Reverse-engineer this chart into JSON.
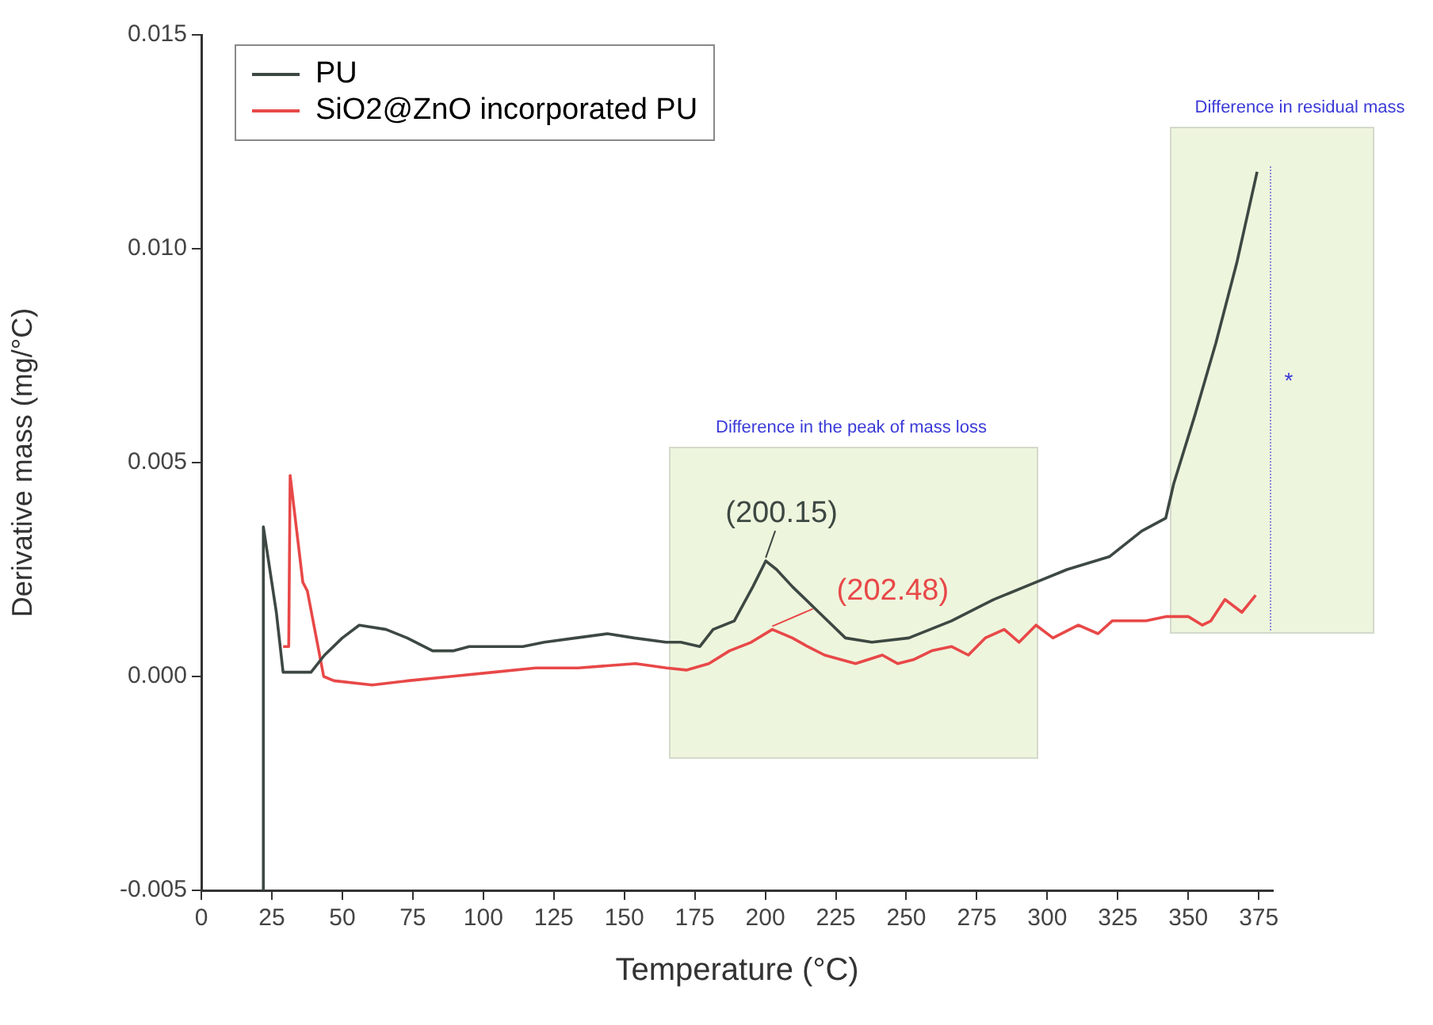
{
  "chart_data": {
    "type": "line",
    "xlabel": "Temperature (°C)",
    "ylabel": "Derivative mass (mg/°C)",
    "xlim": [
      0,
      380
    ],
    "xticks": [
      0,
      25,
      50,
      75,
      100,
      125,
      150,
      175,
      200,
      225,
      250,
      275,
      300,
      325,
      350,
      375
    ],
    "ylim": [
      -0.005,
      0.015
    ],
    "yticks": [
      {
        "value": -0.005,
        "label": "-0.005"
      },
      {
        "value": 0,
        "label": "0.000"
      },
      {
        "value": 0.005,
        "label": "0.005"
      },
      {
        "value": 0.01,
        "label": "0.010"
      },
      {
        "value": 0.015,
        "label": "0.015"
      }
    ],
    "grid": false,
    "legend": "top left",
    "marker": "none",
    "line_style": "solid",
    "series": [
      {
        "name": "PU",
        "color": "#3d4843",
        "x": [
          22,
          22,
          26.6,
          29,
          34,
          38.9,
          43.7,
          50,
          56,
          65.5,
          73,
          82,
          89.5,
          95,
          106,
          114,
          121.6,
          132.8,
          144,
          153.5,
          164.8,
          170,
          176.8,
          181.5,
          189,
          195.6,
          200.15,
          204,
          209.6,
          219,
          228.4,
          237.8,
          250.9,
          266,
          281,
          295.9,
          307,
          322,
          333.5,
          342,
          344.8,
          352.3,
          359.8,
          367.3,
          374.4
        ],
        "values": [
          -0.005,
          0.0035,
          0.0015,
          0.0001,
          0.0001,
          0.0001,
          0.0005,
          0.0009,
          0.0012,
          0.0011,
          0.0009,
          0.0006,
          0.0006,
          0.0007,
          0.0007,
          0.0007,
          0.0008,
          0.0009,
          0.001,
          0.0009,
          0.0008,
          0.0008,
          0.0007,
          0.0011,
          0.0013,
          0.0021,
          0.0027,
          0.0025,
          0.0021,
          0.0015,
          0.0009,
          0.0008,
          0.0009,
          0.0013,
          0.0018,
          0.0022,
          0.0025,
          0.0028,
          0.0034,
          0.0037,
          0.0045,
          0.0061,
          0.0078,
          0.0097,
          0.0118
        ]
      },
      {
        "name": "SiO2@ZnO incorporated PU",
        "color": "#e84848",
        "x": [
          29,
          31,
          31.5,
          36,
          37.6,
          43.4,
          47,
          60.6,
          73.4,
          88.5,
          103.6,
          118.6,
          133.6,
          154,
          165,
          172,
          180,
          187.3,
          195,
          202.48,
          209.6,
          215,
          221,
          232,
          241.5,
          247,
          252.8,
          259,
          266,
          272,
          278,
          284.7,
          290,
          296,
          302,
          311,
          318,
          323,
          335,
          342,
          350,
          355,
          358,
          363,
          369,
          373.9
        ],
        "values": [
          0.0007,
          0.0007,
          0.0047,
          0.0022,
          0.002,
          0,
          -0.0001,
          -0.0002,
          -0.0001,
          0,
          0.0001,
          0.0002,
          0.0002,
          0.0003,
          0.0002,
          0.00015,
          0.0003,
          0.0006,
          0.0008,
          0.0011,
          0.0009,
          0.0007,
          0.0005,
          0.0003,
          0.0005,
          0.0003,
          0.0004,
          0.0006,
          0.0007,
          0.0005,
          0.0009,
          0.0011,
          0.0008,
          0.0012,
          0.0009,
          0.0012,
          0.001,
          0.0013,
          0.0013,
          0.0014,
          0.0014,
          0.0012,
          0.0013,
          0.0018,
          0.0015,
          0.0019
        ]
      }
    ],
    "annotations": [
      {
        "text": "(200.15)",
        "x": 200.15,
        "y": 0.0027
      },
      {
        "text": "(202.48)",
        "x": 202.48,
        "y": 0.0011
      },
      "Difference in the peak of mass loss",
      "Difference in residual mass",
      "*"
    ]
  }
}
